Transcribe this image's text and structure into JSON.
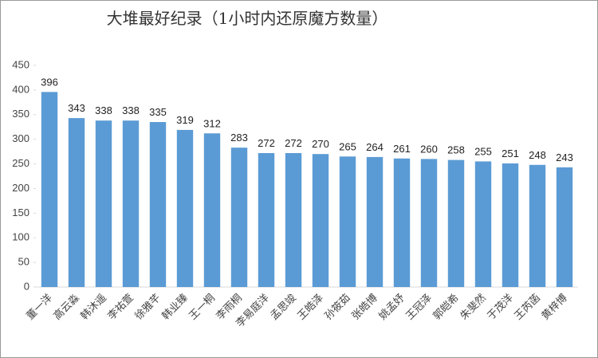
{
  "chart_data": {
    "type": "bar",
    "title": "大堆最好纪录（1小时内还原魔方数量）",
    "categories": [
      "董一洋",
      "高云淼",
      "韩沐遥",
      "李祐萱",
      "徐雅芊",
      "韩业臻",
      "王一桐",
      "李雨桐",
      "李易庭洋",
      "孟思竣",
      "王皓泽",
      "孙筱茹",
      "张皓博",
      "姚孟妤",
      "王冠泽",
      "郭皑希",
      "朱斐然",
      "于茂洋",
      "王芮菡",
      "黄梓博"
    ],
    "values": [
      396,
      343,
      338,
      338,
      335,
      319,
      312,
      283,
      272,
      272,
      270,
      265,
      264,
      261,
      260,
      258,
      255,
      251,
      248,
      243
    ],
    "color": "#5b9bd5",
    "ylim": [
      0,
      450
    ],
    "yticks": [
      0,
      50,
      100,
      150,
      200,
      250,
      300,
      350,
      400,
      450
    ],
    "grid": false
  }
}
